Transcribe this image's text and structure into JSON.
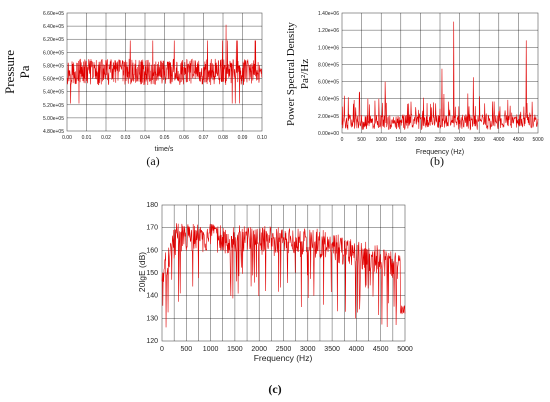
{
  "chart_data": [
    {
      "id": "a",
      "type": "line",
      "caption": "(a)",
      "xlabel": "time/s",
      "ylabel": "Pressure",
      "ylabel_unit": "Pa",
      "xlim": [
        0,
        0.1
      ],
      "ylim": [
        480000,
        660000
      ],
      "x_ticks": [
        "0.00",
        "0.01",
        "0.02",
        "0.03",
        "0.04",
        "0.05",
        "0.06",
        "0.07",
        "0.08",
        "0.09",
        "0.10"
      ],
      "y_ticks": [
        "4.80e+05",
        "5.00e+05",
        "5.20e+05",
        "5.40e+05",
        "5.60e+05",
        "5.80e+05",
        "6.00e+05",
        "6.20e+05",
        "6.40e+05",
        "6.60e+05"
      ],
      "grid": true,
      "series": [
        {
          "color": "#e00000",
          "baseline": 570000,
          "spread": 20000,
          "min": 512000,
          "max": 642000,
          "samples": 700
        }
      ]
    },
    {
      "id": "b",
      "type": "line",
      "caption": "(b)",
      "xlabel": "Frequency (Hz)",
      "ylabel": "Power Spectral Density",
      "ylabel_unit": "Pa²/Hz",
      "xlim": [
        0,
        5000
      ],
      "ylim": [
        0,
        1400000
      ],
      "x_ticks": [
        "0",
        "500",
        "1000",
        "1500",
        "2000",
        "2500",
        "3000",
        "3500",
        "4000",
        "4500",
        "5000"
      ],
      "y_ticks": [
        "0.00e+00",
        "2.00e+05",
        "4.00e+05",
        "6.00e+05",
        "8.00e+05",
        "1.00e+06",
        "1.20e+06",
        "1.40e+06"
      ],
      "grid": true,
      "series": [
        {
          "color": "#e00000",
          "baseline": 150000,
          "spread": 110000,
          "samples": 500,
          "peaks": [
            [
              450,
              480000
            ],
            [
              1100,
              600000
            ],
            [
              2550,
              750000
            ],
            [
              2850,
              1300000
            ],
            [
              3350,
              650000
            ],
            [
              4700,
              1080000
            ]
          ]
        }
      ]
    },
    {
      "id": "c",
      "type": "line",
      "caption": "(c)",
      "xlabel": "Frequency (Hz)",
      "ylabel": "20lgE (dB)",
      "xlim": [
        0,
        5000
      ],
      "ylim": [
        120,
        180
      ],
      "x_ticks": [
        "0",
        "250",
        "500",
        "750",
        "1000",
        "1250",
        "1500",
        "1750",
        "2000",
        "2250",
        "2500",
        "2750",
        "3000",
        "3250",
        "3500",
        "3750",
        "4000",
        "4250",
        "4500",
        "4750",
        "5000"
      ],
      "x_tick_labels_shown": [
        "0",
        "500",
        "1000",
        "1500",
        "2000",
        "2500",
        "3000",
        "3500",
        "4000",
        "4500",
        "5000"
      ],
      "y_ticks": [
        "120",
        "130",
        "140",
        "150",
        "160",
        "170",
        "180"
      ],
      "grid": true,
      "series": [
        {
          "color": "#e00000",
          "start": 148,
          "plateau": 166,
          "plateau_end": 3300,
          "end": 155,
          "final": 134,
          "spread": 12,
          "samples": 600
        }
      ]
    }
  ]
}
